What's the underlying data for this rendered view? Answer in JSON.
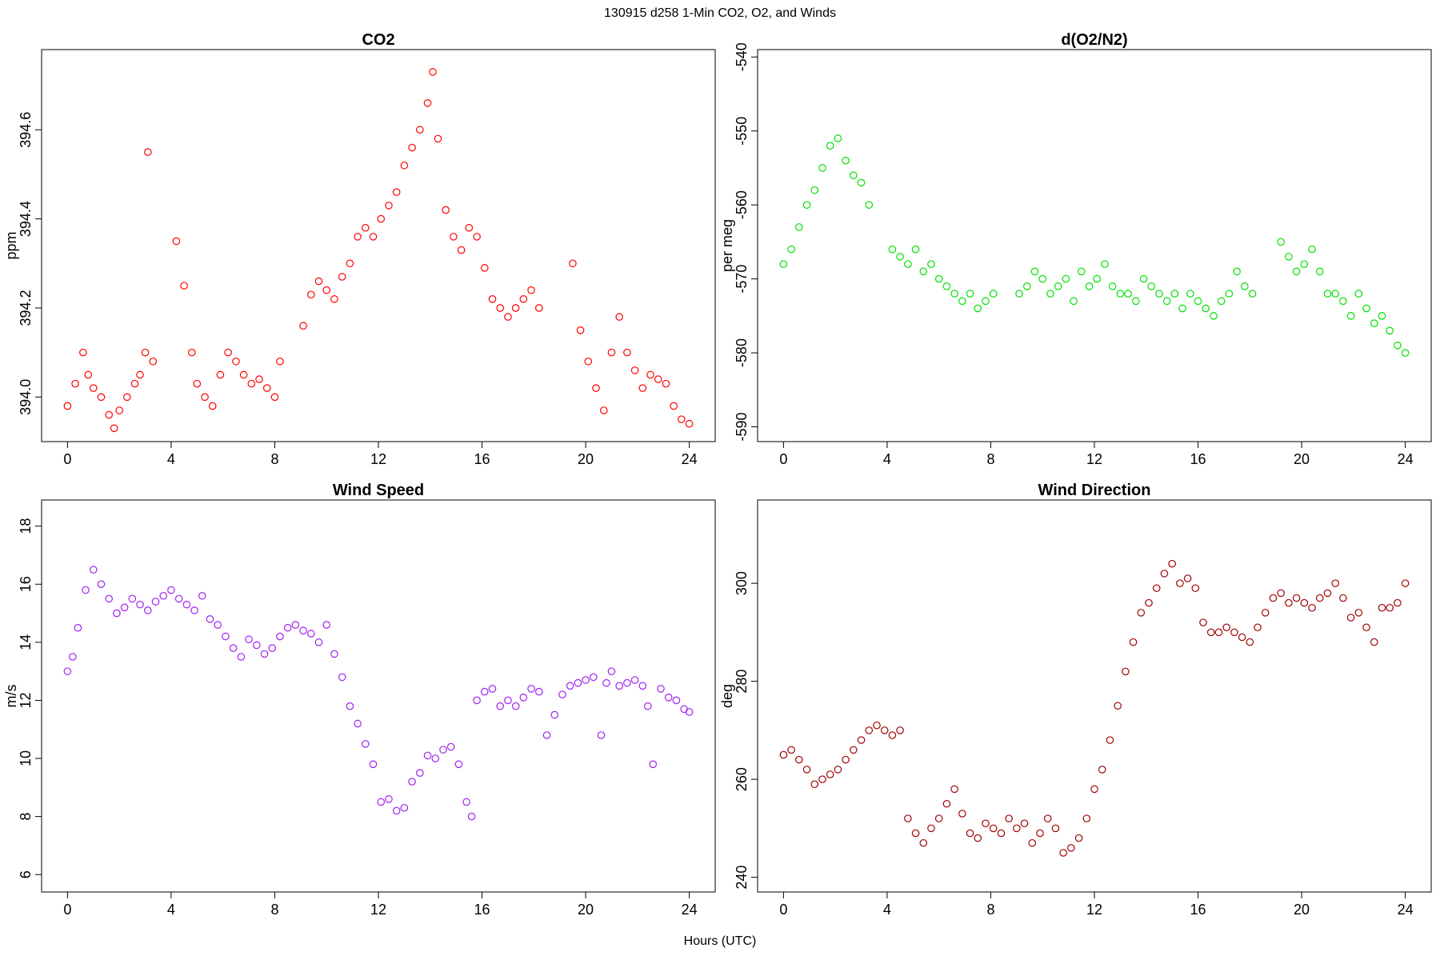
{
  "figure": {
    "title": "130915   d258   1-Min CO2, O2, and Winds",
    "xlabel": "Hours (UTC)"
  },
  "chart_data": [
    {
      "type": "scatter",
      "title": "CO2",
      "xlabel": "",
      "ylabel": "ppm",
      "color": "#ff0000",
      "xlim": [
        -1,
        25
      ],
      "ylim": [
        393.9,
        394.78
      ],
      "x_ticks": [
        0,
        4,
        8,
        12,
        16,
        20,
        24
      ],
      "y_ticks": [
        394.0,
        394.2,
        394.4,
        394.6
      ],
      "y_tick_labels": [
        "394.0",
        "394.2",
        "394.4",
        "394.6"
      ],
      "x": [
        0,
        0.3,
        0.6,
        0.8,
        1.0,
        1.3,
        1.6,
        1.8,
        2.0,
        2.3,
        2.6,
        2.8,
        3.0,
        3.1,
        3.3,
        4.2,
        4.5,
        4.8,
        5.0,
        5.3,
        5.6,
        5.9,
        6.2,
        6.5,
        6.8,
        7.1,
        7.4,
        7.7,
        8.0,
        8.2,
        9.1,
        9.4,
        9.7,
        10.0,
        10.3,
        10.6,
        10.9,
        11.2,
        11.5,
        11.8,
        12.1,
        12.4,
        12.7,
        13.0,
        13.3,
        13.6,
        13.9,
        14.1,
        14.3,
        14.6,
        14.9,
        15.2,
        15.5,
        15.8,
        16.1,
        16.4,
        16.7,
        17.0,
        17.3,
        17.6,
        17.9,
        18.2,
        19.5,
        19.8,
        20.1,
        20.4,
        20.7,
        21.0,
        21.3,
        21.6,
        21.9,
        22.2,
        22.5,
        22.8,
        23.1,
        23.4,
        23.7,
        24.0
      ],
      "y": [
        393.98,
        394.03,
        394.1,
        394.05,
        394.02,
        394.0,
        393.96,
        393.93,
        393.97,
        394.0,
        394.03,
        394.05,
        394.1,
        394.55,
        394.08,
        394.35,
        394.25,
        394.1,
        394.03,
        394.0,
        393.98,
        394.05,
        394.1,
        394.08,
        394.05,
        394.03,
        394.04,
        394.02,
        394.0,
        394.08,
        394.16,
        394.23,
        394.26,
        394.24,
        394.22,
        394.27,
        394.3,
        394.36,
        394.38,
        394.36,
        394.4,
        394.43,
        394.46,
        394.52,
        394.56,
        394.6,
        394.66,
        394.73,
        394.58,
        394.42,
        394.36,
        394.33,
        394.38,
        394.36,
        394.29,
        394.22,
        394.2,
        394.18,
        394.2,
        394.22,
        394.24,
        394.2,
        394.3,
        394.15,
        394.08,
        394.02,
        393.97,
        394.1,
        394.18,
        394.1,
        394.06,
        394.02,
        394.05,
        394.04,
        394.03,
        393.98,
        393.95,
        393.94
      ]
    },
    {
      "type": "scatter",
      "title": "d(O2/N2)",
      "xlabel": "",
      "ylabel": "per meg",
      "color": "#00e000",
      "xlim": [
        -1,
        25
      ],
      "ylim": [
        -592,
        -539
      ],
      "x_ticks": [
        0,
        4,
        8,
        12,
        16,
        20,
        24
      ],
      "y_ticks": [
        -590,
        -580,
        -570,
        -560,
        -550,
        -540
      ],
      "y_tick_labels": [
        "-590",
        "-580",
        "-570",
        "-560",
        "-550",
        "-540"
      ],
      "x": [
        0,
        0.3,
        0.6,
        0.9,
        1.2,
        1.5,
        1.8,
        2.1,
        2.4,
        2.7,
        3.0,
        3.3,
        4.2,
        4.5,
        4.8,
        5.1,
        5.4,
        5.7,
        6.0,
        6.3,
        6.6,
        6.9,
        7.2,
        7.5,
        7.8,
        8.1,
        9.1,
        9.4,
        9.7,
        10.0,
        10.3,
        10.6,
        10.9,
        11.2,
        11.5,
        11.8,
        12.1,
        12.4,
        12.7,
        13.0,
        13.3,
        13.6,
        13.9,
        14.2,
        14.5,
        14.8,
        15.1,
        15.4,
        15.7,
        16.0,
        16.3,
        16.6,
        16.9,
        17.2,
        17.5,
        17.8,
        18.1,
        19.2,
        19.5,
        19.8,
        20.1,
        20.4,
        20.7,
        21.0,
        21.3,
        21.6,
        21.9,
        22.2,
        22.5,
        22.8,
        23.1,
        23.4,
        23.7,
        24.0
      ],
      "y": [
        -568,
        -566,
        -563,
        -560,
        -558,
        -555,
        -552,
        -551,
        -554,
        -556,
        -557,
        -560,
        -566,
        -567,
        -568,
        -566,
        -569,
        -568,
        -570,
        -571,
        -572,
        -573,
        -572,
        -574,
        -573,
        -572,
        -572,
        -571,
        -569,
        -570,
        -572,
        -571,
        -570,
        -573,
        -569,
        -571,
        -570,
        -568,
        -571,
        -572,
        -572,
        -573,
        -570,
        -571,
        -572,
        -573,
        -572,
        -574,
        -572,
        -573,
        -574,
        -575,
        -573,
        -572,
        -569,
        -571,
        -572,
        -565,
        -567,
        -569,
        -568,
        -566,
        -569,
        -572,
        -572,
        -573,
        -575,
        -572,
        -574,
        -576,
        -575,
        -577,
        -579,
        -580
      ]
    },
    {
      "type": "scatter",
      "title": "Wind Speed",
      "xlabel": "",
      "ylabel": "m/s",
      "color": "#a020f0",
      "xlim": [
        -1,
        25
      ],
      "ylim": [
        5.4,
        18.9
      ],
      "x_ticks": [
        0,
        4,
        8,
        12,
        16,
        20,
        24
      ],
      "y_ticks": [
        6,
        8,
        10,
        12,
        14,
        16,
        18
      ],
      "y_tick_labels": [
        "6",
        "8",
        "10",
        "12",
        "14",
        "16",
        "18"
      ],
      "x": [
        0,
        0.2,
        0.4,
        0.7,
        1.0,
        1.3,
        1.6,
        1.9,
        2.2,
        2.5,
        2.8,
        3.1,
        3.4,
        3.7,
        4.0,
        4.3,
        4.6,
        4.9,
        5.2,
        5.5,
        5.8,
        6.1,
        6.4,
        6.7,
        7.0,
        7.3,
        7.6,
        7.9,
        8.2,
        8.5,
        8.8,
        9.1,
        9.4,
        9.7,
        10.0,
        10.3,
        10.6,
        10.9,
        11.2,
        11.5,
        11.8,
        12.1,
        12.4,
        12.7,
        13.0,
        13.3,
        13.6,
        13.9,
        14.2,
        14.5,
        14.8,
        15.1,
        15.4,
        15.6,
        15.8,
        16.1,
        16.4,
        16.7,
        17.0,
        17.3,
        17.6,
        17.9,
        18.2,
        18.5,
        18.8,
        19.1,
        19.4,
        19.7,
        20.0,
        20.3,
        20.6,
        20.8,
        21.0,
        21.3,
        21.6,
        21.9,
        22.2,
        22.4,
        22.6,
        22.9,
        23.2,
        23.5,
        23.8,
        24.0
      ],
      "y": [
        13.0,
        13.5,
        14.5,
        15.8,
        16.5,
        16.0,
        15.5,
        15.0,
        15.2,
        15.5,
        15.3,
        15.1,
        15.4,
        15.6,
        15.8,
        15.5,
        15.3,
        15.1,
        15.6,
        14.8,
        14.6,
        14.2,
        13.8,
        13.5,
        14.1,
        13.9,
        13.6,
        13.8,
        14.2,
        14.5,
        14.6,
        14.4,
        14.3,
        14.0,
        14.6,
        13.6,
        12.8,
        11.8,
        11.2,
        10.5,
        9.8,
        8.5,
        8.6,
        8.2,
        8.3,
        9.2,
        9.5,
        10.1,
        10.0,
        10.3,
        10.4,
        9.8,
        8.5,
        8.0,
        12.0,
        12.3,
        12.4,
        11.8,
        12.0,
        11.8,
        12.1,
        12.4,
        12.3,
        10.8,
        11.5,
        12.2,
        12.5,
        12.6,
        12.7,
        12.8,
        10.8,
        12.6,
        13.0,
        12.5,
        12.6,
        12.7,
        12.5,
        11.8,
        9.8,
        12.4,
        12.1,
        12.0,
        11.7,
        11.6
      ]
    },
    {
      "type": "scatter",
      "title": "Wind Direction",
      "xlabel": "",
      "ylabel": "deg",
      "color": "#a00000",
      "xlim": [
        -1,
        25
      ],
      "ylim": [
        237,
        317
      ],
      "x_ticks": [
        0,
        4,
        8,
        12,
        16,
        20,
        24
      ],
      "y_ticks": [
        240,
        260,
        280,
        300
      ],
      "y_tick_labels": [
        "240",
        "260",
        "280",
        "300"
      ],
      "x": [
        0,
        0.3,
        0.6,
        0.9,
        1.2,
        1.5,
        1.8,
        2.1,
        2.4,
        2.7,
        3.0,
        3.3,
        3.6,
        3.9,
        4.2,
        4.5,
        4.8,
        5.1,
        5.4,
        5.7,
        6.0,
        6.3,
        6.6,
        6.9,
        7.2,
        7.5,
        7.8,
        8.1,
        8.4,
        8.7,
        9.0,
        9.3,
        9.6,
        9.9,
        10.2,
        10.5,
        10.8,
        11.1,
        11.4,
        11.7,
        12.0,
        12.3,
        12.6,
        12.9,
        13.2,
        13.5,
        13.8,
        14.1,
        14.4,
        14.7,
        15.0,
        15.3,
        15.6,
        15.9,
        16.2,
        16.5,
        16.8,
        17.1,
        17.4,
        17.7,
        18.0,
        18.3,
        18.6,
        18.9,
        19.2,
        19.5,
        19.8,
        20.1,
        20.4,
        20.7,
        21.0,
        21.3,
        21.6,
        21.9,
        22.2,
        22.5,
        22.8,
        23.1,
        23.4,
        23.7,
        24.0
      ],
      "y": [
        265,
        266,
        264,
        262,
        259,
        260,
        261,
        262,
        264,
        266,
        268,
        270,
        271,
        270,
        269,
        270,
        252,
        249,
        247,
        250,
        252,
        255,
        258,
        253,
        249,
        248,
        251,
        250,
        249,
        252,
        250,
        251,
        247,
        249,
        252,
        250,
        245,
        246,
        248,
        252,
        258,
        262,
        268,
        275,
        282,
        288,
        294,
        296,
        299,
        302,
        304,
        300,
        301,
        299,
        292,
        290,
        290,
        291,
        290,
        289,
        288,
        291,
        294,
        297,
        298,
        296,
        297,
        296,
        295,
        297,
        298,
        300,
        297,
        293,
        294,
        291,
        288,
        295,
        295,
        296,
        300
      ]
    }
  ]
}
